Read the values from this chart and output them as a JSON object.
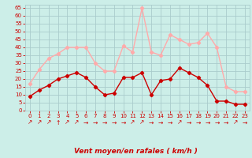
{
  "hours": [
    0,
    1,
    2,
    3,
    4,
    5,
    6,
    7,
    8,
    9,
    10,
    11,
    12,
    13,
    14,
    15,
    16,
    17,
    18,
    19,
    20,
    21,
    22,
    23
  ],
  "avg_wind": [
    9,
    13,
    16,
    20,
    22,
    24,
    21,
    15,
    10,
    11,
    21,
    21,
    24,
    10,
    19,
    20,
    27,
    24,
    21,
    16,
    6,
    6,
    4,
    4
  ],
  "gust_wind": [
    17,
    26,
    33,
    36,
    40,
    40,
    40,
    30,
    25,
    25,
    41,
    37,
    65,
    37,
    35,
    48,
    45,
    42,
    43,
    49,
    40,
    15,
    12,
    12
  ],
  "avg_color": "#cc0000",
  "gust_color": "#ffaaaa",
  "bg_color": "#cceee8",
  "grid_color": "#aacccc",
  "xlabel": "Vent moyen/en rafales ( km/h )",
  "xlabel_color": "#cc0000",
  "yticks": [
    0,
    5,
    10,
    15,
    20,
    25,
    30,
    35,
    40,
    45,
    50,
    55,
    60,
    65
  ],
  "ylim": [
    0,
    67
  ],
  "xlim": [
    -0.5,
    23.5
  ],
  "tick_color": "#cc0000",
  "marker": "D",
  "markersize": 2.2,
  "linewidth": 1.0,
  "arrows": [
    "↗",
    "↗",
    "↗",
    "↑",
    "↗",
    "↗",
    "→",
    "→",
    "→",
    "→",
    "→",
    "↗",
    "↗",
    "→",
    "→",
    "→",
    "↗",
    "→",
    "→",
    "→",
    "→",
    "→",
    "↗",
    "→"
  ]
}
